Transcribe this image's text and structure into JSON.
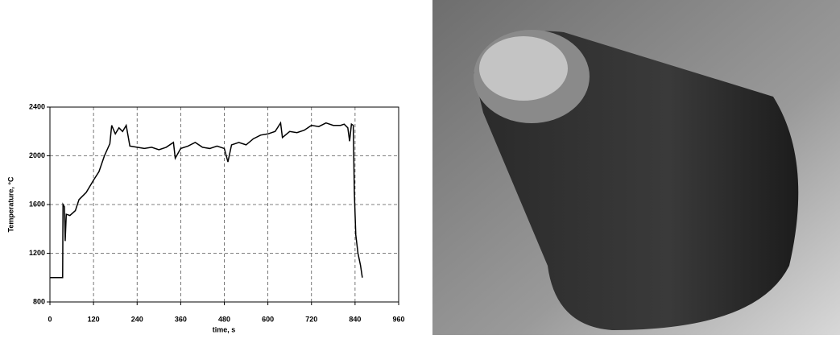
{
  "chart_data": {
    "type": "line",
    "x_label": "time, s",
    "y_label": "Temperature, °C",
    "x": [
      0,
      35,
      36,
      40,
      42,
      45,
      55,
      70,
      80,
      100,
      120,
      135,
      150,
      165,
      170,
      180,
      190,
      200,
      210,
      220,
      240,
      260,
      280,
      300,
      320,
      340,
      345,
      360,
      380,
      400,
      420,
      440,
      460,
      480,
      490,
      500,
      520,
      540,
      560,
      580,
      600,
      620,
      635,
      640,
      660,
      680,
      700,
      720,
      740,
      760,
      780,
      800,
      810,
      820,
      825,
      830,
      835,
      838,
      842,
      848,
      855,
      860
    ],
    "series": [
      {
        "color": "#000000",
        "values": [
          1000,
          1000,
          1600,
          1580,
          1300,
          1520,
          1510,
          1550,
          1640,
          1700,
          1800,
          1870,
          2000,
          2100,
          2250,
          2180,
          2230,
          2200,
          2250,
          2080,
          2070,
          2060,
          2070,
          2050,
          2070,
          2110,
          1980,
          2060,
          2080,
          2110,
          2070,
          2060,
          2080,
          2060,
          1950,
          2090,
          2110,
          2090,
          2140,
          2170,
          2180,
          2200,
          2270,
          2150,
          2200,
          2190,
          2210,
          2250,
          2240,
          2270,
          2250,
          2250,
          2260,
          2230,
          2120,
          2260,
          2250,
          1700,
          1350,
          1200,
          1100,
          1000
        ]
      }
    ],
    "xlim": [
      0,
      960
    ],
    "xticks": [
      0,
      120,
      240,
      360,
      480,
      600,
      720,
      840,
      960
    ],
    "ylim": [
      800,
      2400
    ],
    "yticks": [
      800,
      1200,
      1600,
      2000,
      2400
    ],
    "grid": true
  }
}
